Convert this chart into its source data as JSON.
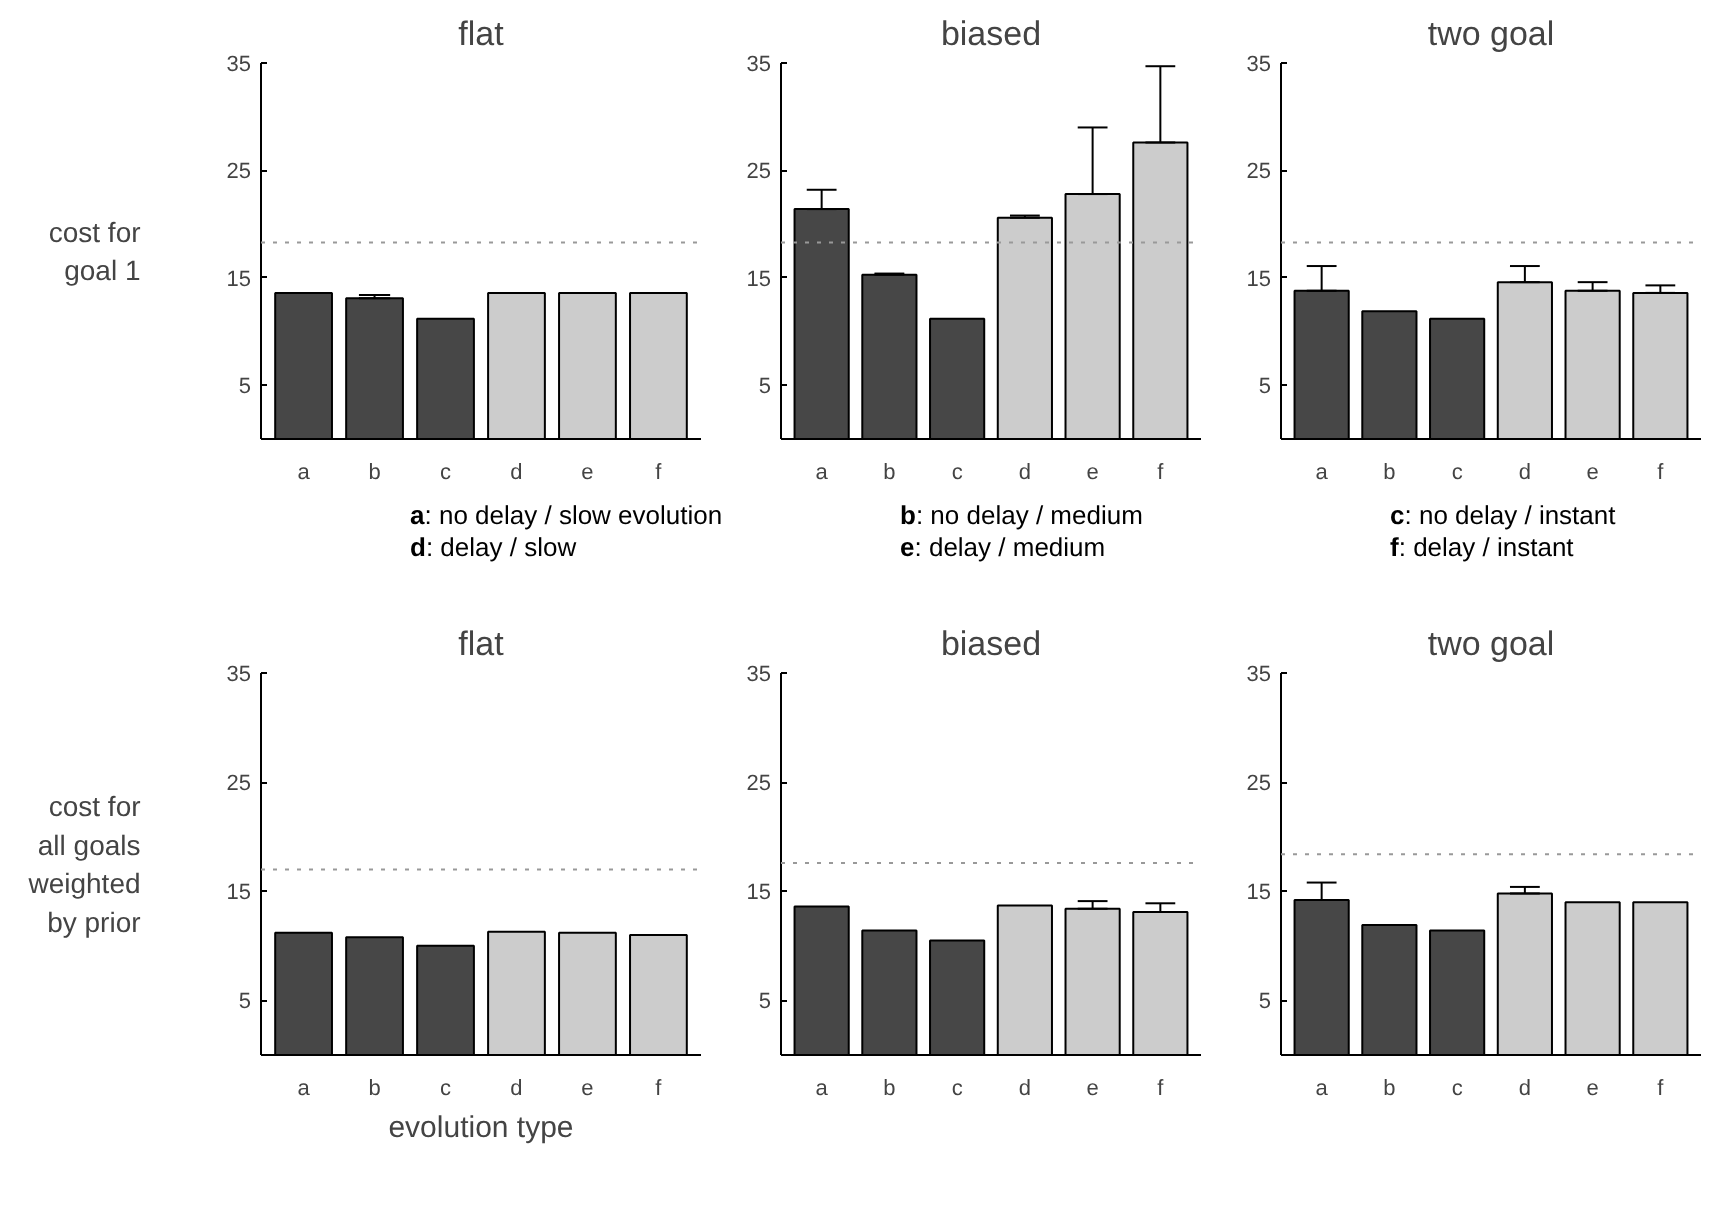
{
  "chart_data": [
    {
      "type": "bar",
      "title": "flat",
      "ylabel": "cost for\ngoal 1",
      "categories": [
        "a",
        "b",
        "c",
        "d",
        "e",
        "f"
      ],
      "values": [
        13.6,
        13.1,
        11.2,
        13.6,
        13.6,
        13.6
      ],
      "errors": [
        null,
        [
          13.1,
          13.4
        ],
        null,
        null,
        null,
        null
      ],
      "colors": [
        "#474747",
        "#474747",
        "#474747",
        "#cccccc",
        "#cccccc",
        "#cccccc"
      ],
      "ylim": [
        0,
        35
      ],
      "yticks": [
        5,
        15,
        25,
        35
      ],
      "ref_lines": [
        {
          "axis": "y",
          "value": 18.3,
          "color": "#999999",
          "line_style": "dotted"
        }
      ],
      "grid": false
    },
    {
      "type": "bar",
      "title": "biased",
      "categories": [
        "a",
        "b",
        "c",
        "d",
        "e",
        "f"
      ],
      "values": [
        21.4,
        15.3,
        11.2,
        20.6,
        22.8,
        27.6
      ],
      "errors": [
        [
          21.4,
          23.2
        ],
        [
          15.3,
          15.4
        ],
        null,
        [
          20.6,
          20.8
        ],
        [
          22.8,
          29.0
        ],
        [
          27.6,
          34.7
        ]
      ],
      "colors": [
        "#474747",
        "#474747",
        "#474747",
        "#cccccc",
        "#cccccc",
        "#cccccc"
      ],
      "ylim": [
        0,
        35
      ],
      "yticks": [
        5,
        15,
        25,
        35
      ],
      "ref_lines": [
        {
          "axis": "y",
          "value": 18.3,
          "color": "#999999",
          "line_style": "dotted"
        }
      ],
      "grid": false
    },
    {
      "type": "bar",
      "title": "two goal",
      "categories": [
        "a",
        "b",
        "c",
        "d",
        "e",
        "f"
      ],
      "values": [
        13.8,
        11.9,
        11.2,
        14.6,
        13.8,
        13.6
      ],
      "errors": [
        [
          13.8,
          16.1
        ],
        null,
        null,
        [
          14.6,
          16.1
        ],
        [
          13.8,
          14.6
        ],
        [
          13.6,
          14.3
        ]
      ],
      "colors": [
        "#474747",
        "#474747",
        "#474747",
        "#cccccc",
        "#cccccc",
        "#cccccc"
      ],
      "ylim": [
        0,
        35
      ],
      "yticks": [
        5,
        15,
        25,
        35
      ],
      "ref_lines": [
        {
          "axis": "y",
          "value": 18.3,
          "color": "#999999",
          "line_style": "dotted"
        }
      ],
      "grid": false
    },
    {
      "type": "other",
      "annotations": [
        "a: no delay / slow evolution",
        "b: no delay / medium",
        "c: no delay / instant",
        "d: delay / slow",
        "e: delay / medium",
        "f: delay / instant"
      ]
    },
    {
      "type": "bar",
      "title": "flat",
      "ylabel": "cost for\nall goals\nweighted\nby prior",
      "xlabel": "evolution type",
      "categories": [
        "a",
        "b",
        "c",
        "d",
        "e",
        "f"
      ],
      "values": [
        11.2,
        10.8,
        10.0,
        11.3,
        11.2,
        11.0
      ],
      "colors": [
        "#474747",
        "#474747",
        "#474747",
        "#cccccc",
        "#cccccc",
        "#cccccc"
      ],
      "ylim": [
        0,
        35
      ],
      "yticks": [
        5,
        15,
        25,
        35
      ],
      "ref_lines": [
        {
          "axis": "y",
          "value": 17.0,
          "color": "#999999",
          "line_style": "dotted"
        }
      ],
      "grid": false
    },
    {
      "type": "bar",
      "title": "biased",
      "categories": [
        "a",
        "b",
        "c",
        "d",
        "e",
        "f"
      ],
      "values": [
        13.6,
        11.4,
        10.5,
        13.7,
        13.4,
        13.1
      ],
      "errors": [
        null,
        null,
        null,
        null,
        [
          13.4,
          14.1
        ],
        [
          13.1,
          13.9
        ]
      ],
      "colors": [
        "#474747",
        "#474747",
        "#474747",
        "#cccccc",
        "#cccccc",
        "#cccccc"
      ],
      "ylim": [
        0,
        35
      ],
      "yticks": [
        5,
        15,
        25,
        35
      ],
      "ref_lines": [
        {
          "axis": "y",
          "value": 17.6,
          "color": "#999999",
          "line_style": "dotted"
        }
      ],
      "grid": false
    },
    {
      "type": "bar",
      "title": "two goal",
      "categories": [
        "a",
        "b",
        "c",
        "d",
        "e",
        "f"
      ],
      "values": [
        14.2,
        11.9,
        11.4,
        14.8,
        14.0,
        14.0
      ],
      "errors": [
        [
          14.2,
          15.8
        ],
        null,
        null,
        [
          14.8,
          15.4
        ],
        null,
        null
      ],
      "colors": [
        "#474747",
        "#474747",
        "#474747",
        "#cccccc",
        "#cccccc",
        "#cccccc"
      ],
      "ylim": [
        0,
        35
      ],
      "yticks": [
        5,
        15,
        25,
        35
      ],
      "ref_lines": [
        {
          "axis": "y",
          "value": 18.4,
          "color": "#999999",
          "line_style": "dotted"
        }
      ],
      "grid": false
    }
  ]
}
